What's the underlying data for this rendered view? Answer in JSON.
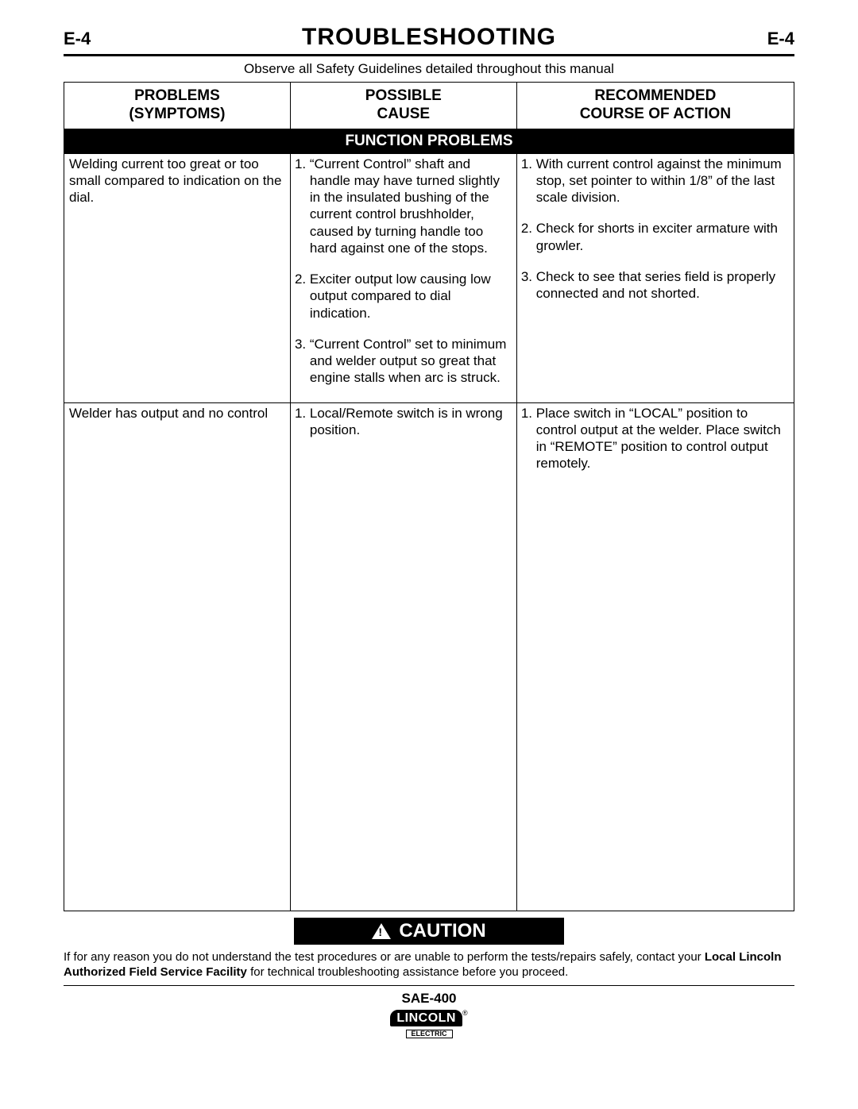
{
  "header": {
    "page_num_left": "E-4",
    "title": "TROUBLESHOOTING",
    "page_num_right": "E-4"
  },
  "safety_note": "Observe all Safety Guidelines detailed throughout this manual",
  "table": {
    "columns": [
      "PROBLEMS (SYMPTOMS)",
      "POSSIBLE CAUSE",
      "RECOMMENDED COURSE OF ACTION"
    ],
    "section_title": "FUNCTION PROBLEMS",
    "rows": [
      {
        "problem": "Welding current too great or too small compared to indication on the dial.",
        "causes": [
          "“Current Control” shaft and handle may have turned slightly in the insulated bushing of the current control brushholder, caused by turning handle too hard against one of the stops.",
          "Exciter output low causing low output compared to dial indication.",
          "“Current Control” set to minimum and welder output so great that engine stalls when arc is struck."
        ],
        "actions": [
          "With current control against the minimum stop, set pointer to within 1/8” of the last scale division.",
          "Check for shorts in exciter armature with growler.",
          "Check to see that series field is properly connected and not shorted."
        ]
      },
      {
        "problem": "Welder has output and no control",
        "causes": [
          "Local/Remote switch is in wrong position."
        ],
        "actions": [
          "Place switch in “LOCAL” position to control output at the welder. Place switch in “REMOTE” position to control output remotely."
        ]
      }
    ]
  },
  "caution": {
    "label": "CAUTION",
    "text_pre": "If for any reason you do not understand the test procedures or are unable to perform the tests/repairs safely, contact your ",
    "text_bold": "Local Lincoln Authorized Field Service Facility",
    "text_post": " for technical troubleshooting assistance before you proceed."
  },
  "footer": {
    "model": "SAE-400",
    "logo_brand": "LINCOLN",
    "logo_sub": "ELECTRIC"
  }
}
